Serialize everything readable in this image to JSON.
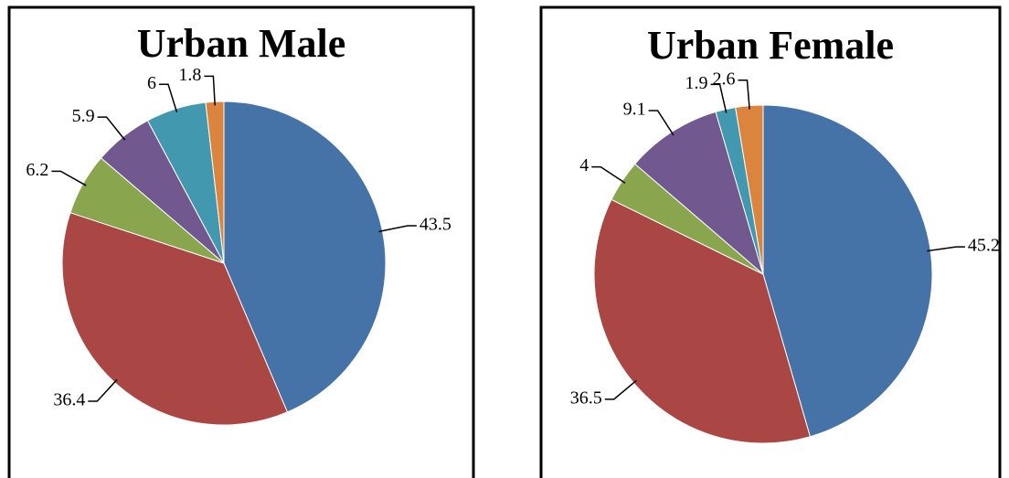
{
  "chart_data": [
    {
      "type": "pie",
      "title": "Urban Male",
      "values": [
        43.5,
        36.4,
        6.2,
        5.9,
        6,
        1.8
      ],
      "colors": [
        "#4572a7",
        "#aa4643",
        "#89a54e",
        "#71588f",
        "#4198af",
        "#db843d"
      ]
    },
    {
      "type": "pie",
      "title": "Urban Female",
      "values": [
        45.2,
        36.5,
        4,
        9.1,
        1.9,
        2.6
      ],
      "colors": [
        "#4572a7",
        "#aa4643",
        "#89a54e",
        "#71588f",
        "#4198af",
        "#db843d"
      ]
    }
  ]
}
